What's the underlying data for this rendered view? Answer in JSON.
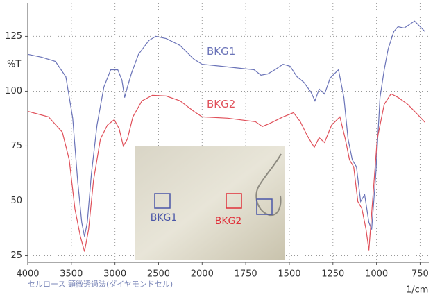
{
  "chart_data": {
    "type": "line",
    "y_label": "%T",
    "x_label": "1/cm",
    "caption": "セルロース 顕微透過法(ダイヤモンドセル)",
    "xlim": [
      4000,
      700
    ],
    "xticks": [
      4000,
      3500,
      3000,
      2500,
      2000,
      1750,
      1500,
      1250,
      1000,
      750
    ],
    "ylim": [
      22,
      140
    ],
    "yticks": [
      25,
      50,
      75,
      100,
      125
    ],
    "grid": true,
    "series": [
      {
        "name": "BKG1",
        "color": "#6a73b8",
        "x": [
          4000,
          3841,
          3683,
          3563,
          3484,
          3428,
          3381,
          3349,
          3317,
          3270,
          3206,
          3127,
          3048,
          2968,
          2920,
          2889,
          2857,
          2810,
          2730,
          2611,
          2532,
          2413,
          2254,
          2095,
          2000,
          1893,
          1774,
          1702,
          1663,
          1623,
          1583,
          1536,
          1496,
          1456,
          1417,
          1377,
          1353,
          1329,
          1298,
          1266,
          1218,
          1187,
          1163,
          1139,
          1115,
          1091,
          1068,
          1044,
          1028,
          1004,
          980,
          956,
          933,
          901,
          877,
          841,
          782,
          722
        ],
        "values": [
          116.8,
          115.5,
          113.6,
          106.6,
          87.7,
          59.2,
          40.2,
          33.8,
          40.2,
          62.3,
          84.5,
          101.9,
          109.8,
          109.8,
          105.1,
          97.1,
          101.9,
          108.2,
          116.8,
          123.1,
          125,
          124,
          120.9,
          114.6,
          112.3,
          111.4,
          110.4,
          109.8,
          107.3,
          107.9,
          109.8,
          112.3,
          111.4,
          106.6,
          104.1,
          99.7,
          95.6,
          101,
          98.7,
          106,
          109.8,
          97.1,
          78.2,
          68.7,
          65.5,
          49.7,
          52.8,
          40.2,
          37,
          62.3,
          97.1,
          109.8,
          119.3,
          127.2,
          129.4,
          128.8,
          132,
          127.2
        ]
      },
      {
        "name": "BKG2",
        "color": "#e0505a",
        "x": [
          4000,
          3762,
          3603,
          3524,
          3460,
          3397,
          3349,
          3302,
          3246,
          3167,
          3087,
          3008,
          2952,
          2904,
          2857,
          2794,
          2690,
          2571,
          2413,
          2254,
          2095,
          2000,
          1853,
          1694,
          1655,
          1615,
          1536,
          1476,
          1437,
          1397,
          1357,
          1329,
          1298,
          1258,
          1210,
          1179,
          1155,
          1131,
          1107,
          1084,
          1060,
          1044,
          1020,
          996,
          956,
          917,
          877,
          821,
          762,
          722
        ],
        "values": [
          90.8,
          88.3,
          81.3,
          68.7,
          46.5,
          33.8,
          26.9,
          37,
          59.2,
          78.2,
          84.5,
          87,
          82.9,
          75,
          78.2,
          88.3,
          95.6,
          98.1,
          97.8,
          95.6,
          90.8,
          88.3,
          87.7,
          86.1,
          83.9,
          85.2,
          88.3,
          90.2,
          86.1,
          79.7,
          74.4,
          78.8,
          76.6,
          84.5,
          88.3,
          78.2,
          68.7,
          65.5,
          49.7,
          46.5,
          37,
          27.5,
          52.8,
          78.2,
          94,
          98.8,
          97.2,
          94,
          89.2,
          85.8
        ]
      }
    ],
    "inset_labels": [
      {
        "text": "BKG1",
        "color": "#4a56a8"
      },
      {
        "text": "BKG2",
        "color": "#e0303a"
      }
    ]
  }
}
